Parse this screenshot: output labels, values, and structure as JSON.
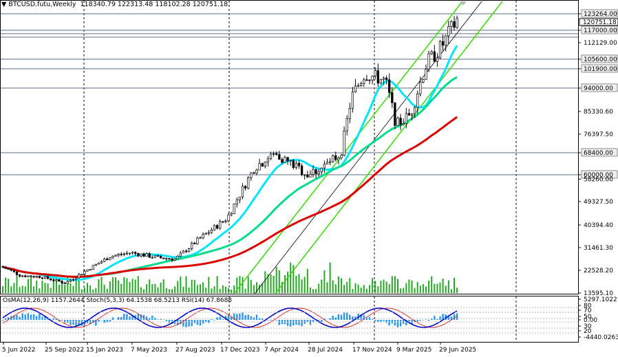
{
  "header": {
    "symbol": "BTCUSD.futu,Weekly",
    "open": "118340.79",
    "high": "122313.48",
    "low": "118102.28",
    "close": "120751.18"
  },
  "subheader": {
    "osma": "OsMA(12,26,9) 1157.2644",
    "stoch": "Stoch(5,3,3) 64.1538 68.5213",
    "rsi": "RSI(14) 67.8688"
  },
  "price_scale": [
    "123264.00",
    "117000.00",
    "112129.00",
    "105600.00",
    "101900.00",
    "94000.00",
    "85330.60",
    "76397.50",
    "68400.00",
    "60000.00",
    "58260.00",
    "49327.50",
    "40394.40",
    "31461.30",
    "22528.20",
    "13595.10"
  ],
  "current_price": "120751.18",
  "osc_scale": [
    "5297.1022",
    "80",
    "70",
    "50",
    "0.00",
    "30",
    "20",
    "-4440.0263"
  ],
  "time_axis": [
    "5 Jun 2022",
    "25 Sep 2022",
    "15 Jan 2023",
    "7 May 2023",
    "27 Aug 2023",
    "17 Dec 2023",
    "7 Apr 2024",
    "28 Jul 2024",
    "17 Nov 2024",
    "9 Mar 2025",
    "29 Jun 2025"
  ],
  "colors": {
    "bull": "#000000",
    "ma_fast": "#00e5ff",
    "ma_mid": "#00dd88",
    "ma_slow": "#dd0000",
    "channel": "#33dd00",
    "osma": "#2196f3",
    "stoch_main": "#0000cc",
    "stoch_signal": "#dd0000"
  },
  "chart_data": {
    "type": "line",
    "series": [
      {
        "x": [
          "5 Jun 2022",
          "25 Sep 2022",
          "15 Jan 2023",
          "7 May 2023",
          "27 Aug 2023",
          "17 Dec 2023",
          "7 Apr 2024",
          "28 Jul 2024",
          "17 Nov 2024",
          "9 Mar 2025",
          "29 Jun 2025"
        ],
        "values": [
          24000,
          19000,
          21000,
          28500,
          26000,
          42000,
          69000,
          62000,
          92000,
          84000,
          120751
        ]
      }
    ],
    "ylim": [
      13595.1,
      127000
    ],
    "grid": true
  }
}
